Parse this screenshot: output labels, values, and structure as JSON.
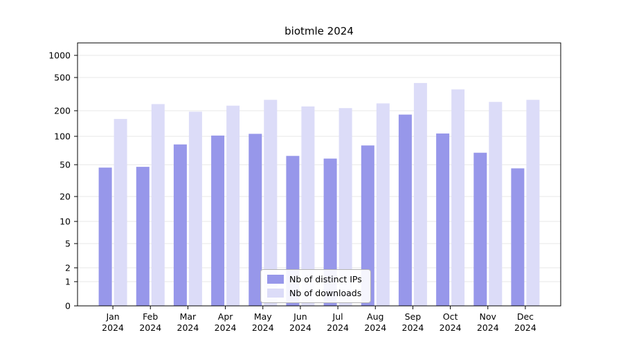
{
  "chart_data": {
    "type": "bar",
    "title": "biotmle 2024",
    "categories": [
      "Jan",
      "Feb",
      "Mar",
      "Apr",
      "May",
      "Jun",
      "Jul",
      "Aug",
      "Sep",
      "Oct",
      "Nov",
      "Dec"
    ],
    "year": "2024",
    "yscale": "symlog",
    "yticks": [
      0,
      1,
      2,
      5,
      10,
      20,
      50,
      100,
      200,
      500,
      1000
    ],
    "ylim": [
      0,
      1500
    ],
    "grid": true,
    "legend_position": "lower center",
    "series": [
      {
        "key": "distinct-ips",
        "name": "Nb of distinct IPs",
        "color": "#9797ea",
        "values": [
          46,
          47,
          82,
          102,
          107,
          62,
          58,
          80,
          180,
          108,
          67,
          45
        ]
      },
      {
        "key": "downloads",
        "name": "Nb of downloads",
        "color": "#dcdcf8",
        "values": [
          160,
          240,
          195,
          230,
          270,
          225,
          215,
          245,
          430,
          360,
          255,
          270
        ]
      }
    ]
  }
}
